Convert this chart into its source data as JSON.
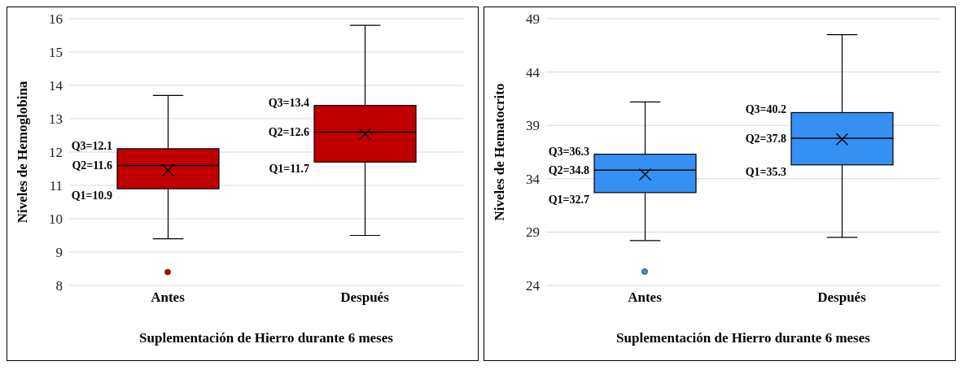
{
  "chart_data": [
    {
      "type": "box",
      "categories": [
        "Antes",
        "Después"
      ],
      "xlabel": "Suplementación de Hierro durante 6 meses",
      "ylabel": "Niveles de Hemoglobina",
      "ylim": [
        8,
        16
      ],
      "yticks": [
        8,
        9,
        10,
        11,
        12,
        13,
        14,
        15,
        16
      ],
      "grid": "y",
      "marker": "cross",
      "series": [
        {
          "color": "#c00000",
          "boxes": [
            {
              "low": 9.4,
              "q1": 10.9,
              "median": 11.6,
              "q3": 12.1,
              "high": 13.7,
              "mean": 11.45,
              "outliers": [
                8.4
              ]
            },
            {
              "low": 9.5,
              "q1": 11.7,
              "median": 12.6,
              "q3": 13.4,
              "high": 15.8,
              "mean": 12.55
            }
          ]
        }
      ],
      "annotations": [
        "Q3=12.1",
        "Q2=11.6",
        "Q1=10.9",
        "Q3=13.4",
        "Q2=12.6",
        "Q1=11.7"
      ]
    },
    {
      "type": "box",
      "categories": [
        "Antes",
        "Después"
      ],
      "xlabel": "Suplementación de Hierro durante 6 meses",
      "ylabel": "Niveles de Hematocrito",
      "ylim": [
        24,
        49
      ],
      "yticks": [
        24,
        29,
        34,
        39,
        44,
        49
      ],
      "grid": "y",
      "marker": "cross",
      "series": [
        {
          "color": "#3590f3",
          "boxes": [
            {
              "low": 28.2,
              "q1": 32.7,
              "median": 34.8,
              "q3": 36.3,
              "high": 41.2,
              "mean": 34.4,
              "outliers": [
                25.3
              ]
            },
            {
              "low": 28.5,
              "q1": 35.3,
              "median": 37.8,
              "q3": 40.2,
              "high": 47.5,
              "mean": 37.7
            }
          ]
        }
      ],
      "annotations": [
        "Q3=36.3",
        "Q2=34.8",
        "Q1=32.7",
        "Q3=40.2",
        "Q2=37.8",
        "Q1=35.3"
      ]
    }
  ]
}
